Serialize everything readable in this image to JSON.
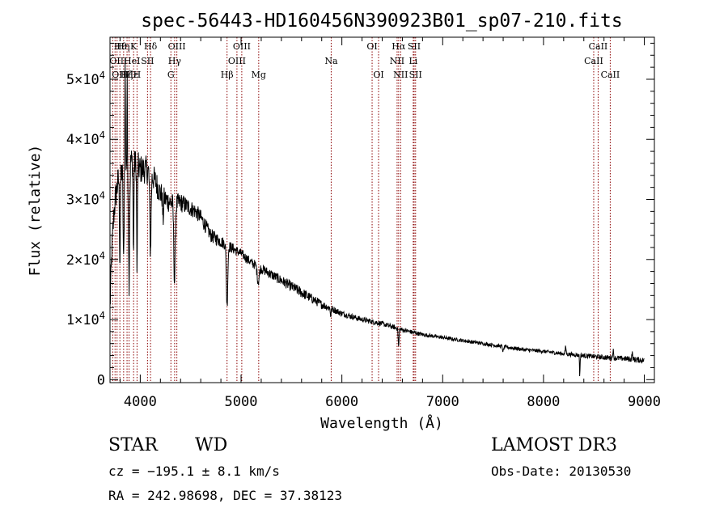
{
  "chart_data": {
    "type": "line",
    "title": "spec-56443-HD160456N390923B01_sp07-210.fits",
    "xlabel": "Wavelength (Å)",
    "ylabel": "Flux (relative)",
    "xlim": [
      3700,
      9100
    ],
    "ylim": [
      -500,
      57000
    ],
    "x_ticks": [
      4000,
      5000,
      6000,
      7000,
      8000,
      9000
    ],
    "x_tick_labels": [
      "4000",
      "5000",
      "6000",
      "7000",
      "8000",
      "9000"
    ],
    "y_ticks": [
      0,
      10000,
      20000,
      30000,
      40000,
      50000
    ],
    "y_tick_labels": [
      {
        "mant": "0",
        "exp": ""
      },
      {
        "mant": "1×10",
        "exp": "4"
      },
      {
        "mant": "2×10",
        "exp": "4"
      },
      {
        "mant": "3×10",
        "exp": "4"
      },
      {
        "mant": "4×10",
        "exp": "4"
      },
      {
        "mant": "5×10",
        "exp": "4"
      }
    ],
    "series": [
      {
        "name": "spectrum",
        "color": "#000000",
        "continuum": [
          [
            3700,
            12000
          ],
          [
            3720,
            22000
          ],
          [
            3740,
            28000
          ],
          [
            3760,
            31000
          ],
          [
            3780,
            33000
          ],
          [
            3800,
            34000
          ],
          [
            3830,
            35000
          ],
          [
            3860,
            36000
          ],
          [
            3900,
            36500
          ],
          [
            3950,
            36000
          ],
          [
            4000,
            35000
          ],
          [
            4050,
            35000
          ],
          [
            4100,
            34500
          ],
          [
            4150,
            33000
          ],
          [
            4200,
            31000
          ],
          [
            4250,
            30000
          ],
          [
            4300,
            29500
          ],
          [
            4350,
            29200
          ],
          [
            4400,
            29500
          ],
          [
            4450,
            29000
          ],
          [
            4500,
            28500
          ],
          [
            4550,
            28000
          ],
          [
            4600,
            27000
          ],
          [
            4650,
            25500
          ],
          [
            4700,
            24000
          ],
          [
            4750,
            23500
          ],
          [
            4800,
            23000
          ],
          [
            4900,
            22000
          ],
          [
            5000,
            21000
          ],
          [
            5100,
            19500
          ],
          [
            5200,
            18500
          ],
          [
            5300,
            17500
          ],
          [
            5400,
            16500
          ],
          [
            5500,
            15500
          ],
          [
            5600,
            14500
          ],
          [
            5700,
            13500
          ],
          [
            5800,
            12500
          ],
          [
            5900,
            11800
          ],
          [
            6000,
            11000
          ],
          [
            6200,
            10000
          ],
          [
            6400,
            9300
          ],
          [
            6600,
            8300
          ],
          [
            6800,
            7500
          ],
          [
            7000,
            7000
          ],
          [
            7200,
            6500
          ],
          [
            7400,
            6000
          ],
          [
            7600,
            5500
          ],
          [
            7800,
            5000
          ],
          [
            8000,
            4700
          ],
          [
            8200,
            4300
          ],
          [
            8400,
            4000
          ],
          [
            8600,
            3700
          ],
          [
            8800,
            3500
          ],
          [
            9000,
            3200
          ]
        ],
        "absorption_dips": [
          {
            "x": 3798,
            "depth": 14000,
            "width": 6
          },
          {
            "x": 3835,
            "depth": 16000,
            "width": 7
          },
          {
            "x": 3889,
            "depth": 20000,
            "width": 8
          },
          {
            "x": 3933,
            "depth": 16000,
            "width": 5
          },
          {
            "x": 3968,
            "depth": 18000,
            "width": 5
          },
          {
            "x": 4101,
            "depth": 13000,
            "width": 9
          },
          {
            "x": 4226,
            "depth": 4000,
            "width": 6
          },
          {
            "x": 4340,
            "depth": 13000,
            "width": 10
          },
          {
            "x": 4861,
            "depth": 10000,
            "width": 10
          },
          {
            "x": 5170,
            "depth": 2500,
            "width": 14
          },
          {
            "x": 5890,
            "depth": 1200,
            "width": 6
          },
          {
            "x": 6563,
            "depth": 3000,
            "width": 6
          },
          {
            "x": 7600,
            "depth": 800,
            "width": 8
          },
          {
            "x": 8360,
            "depth": 3500,
            "width": 4
          }
        ],
        "emission_spikes": [
          {
            "x": 3850,
            "height": 17000,
            "width": 4
          },
          {
            "x": 3870,
            "height": 14000,
            "width": 3
          },
          {
            "x": 8220,
            "height": 1200,
            "width": 6
          },
          {
            "x": 8690,
            "height": 1300,
            "width": 6
          },
          {
            "x": 8880,
            "height": 1000,
            "width": 6
          }
        ],
        "noise_amplitude": [
          [
            3700,
            2500
          ],
          [
            4000,
            2500
          ],
          [
            4500,
            1400
          ],
          [
            5000,
            800
          ],
          [
            5600,
            900
          ],
          [
            6000,
            500
          ],
          [
            7000,
            300
          ],
          [
            8000,
            300
          ],
          [
            9000,
            500
          ]
        ]
      }
    ],
    "reference_lines": [
      {
        "x": 3727,
        "label": "OII",
        "row": 1,
        "align": "start"
      },
      {
        "x": 3750,
        "label": "OIII",
        "row": 2,
        "align": "start"
      },
      {
        "x": 3770,
        "label": "Hθ",
        "row": 0,
        "align": "start"
      },
      {
        "x": 3798,
        "label": "Hη",
        "row": 0,
        "align": "start"
      },
      {
        "x": 3835,
        "label": "Hζ",
        "row": 2,
        "align": "start"
      },
      {
        "x": 3869,
        "label": "HeI",
        "row": 1,
        "align": "start"
      },
      {
        "x": 3889,
        "label": "Hε",
        "row": 2,
        "align": "start"
      },
      {
        "x": 3934,
        "label": "K",
        "row": 0,
        "align": "middle"
      },
      {
        "x": 3968,
        "label": "H",
        "row": 2,
        "align": "middle"
      },
      {
        "x": 4072,
        "label": "SII",
        "row": 1,
        "align": "middle"
      },
      {
        "x": 4102,
        "label": "Hδ",
        "row": 0,
        "align": "middle"
      },
      {
        "x": 4304,
        "label": "G",
        "row": 2,
        "align": "middle"
      },
      {
        "x": 4341,
        "label": "Hγ",
        "row": 1,
        "align": "middle"
      },
      {
        "x": 4363,
        "label": "OIII",
        "row": 0,
        "align": "middle"
      },
      {
        "x": 4861,
        "label": "Hβ",
        "row": 2,
        "align": "middle"
      },
      {
        "x": 4959,
        "label": "OIII",
        "row": 1,
        "align": "middle"
      },
      {
        "x": 5007,
        "label": "OIII",
        "row": 0,
        "align": "middle"
      },
      {
        "x": 5175,
        "label": "Mg",
        "row": 2,
        "align": "middle"
      },
      {
        "x": 5894,
        "label": "Na",
        "row": 1,
        "align": "middle"
      },
      {
        "x": 6300,
        "label": "OI",
        "row": 0,
        "align": "middle"
      },
      {
        "x": 6364,
        "label": "OI",
        "row": 2,
        "align": "middle"
      },
      {
        "x": 6548,
        "label": "NII",
        "row": 1,
        "align": "middle"
      },
      {
        "x": 6563,
        "label": "Hα",
        "row": 0,
        "align": "middle"
      },
      {
        "x": 6583,
        "label": "NII",
        "row": 2,
        "align": "middle"
      },
      {
        "x": 6708,
        "label": "Li",
        "row": 1,
        "align": "middle"
      },
      {
        "x": 6717,
        "label": "SII",
        "row": 0,
        "align": "middle"
      },
      {
        "x": 6731,
        "label": "SII",
        "row": 2,
        "align": "middle"
      },
      {
        "x": 8498,
        "label": "CaII",
        "row": 1,
        "align": "middle"
      },
      {
        "x": 8542,
        "label": "CaII",
        "row": 0,
        "align": "middle"
      },
      {
        "x": 8662,
        "label": "CaII",
        "row": 2,
        "align": "middle"
      }
    ],
    "reference_line_color": "#8b0000",
    "axis_color": "#000000"
  },
  "info": {
    "class_label": "STAR",
    "subclass_label": "WD",
    "survey_label": "LAMOST DR3",
    "redshift_text": "cz = −195.1 ± 8.1 km/s",
    "obsdate_text": "Obs-Date: 20130530",
    "coords_text": "RA = 242.98698, DEC =  37.38123"
  }
}
